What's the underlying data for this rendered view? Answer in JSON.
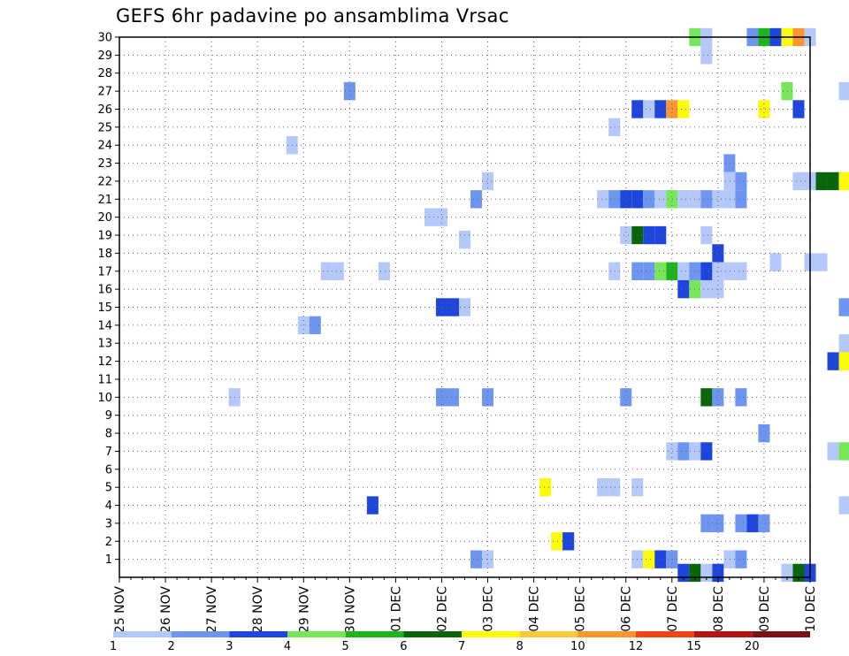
{
  "chart_data": {
    "type": "heatmap",
    "title": "GEFS 6hr padavine po ansamblima Vrsac",
    "xlabel": "",
    "ylabel": "",
    "x_tick_labels": [
      "25 NOV",
      "26 NOV",
      "27 NOV",
      "28 NOV",
      "29 NOV",
      "30 NOV",
      "01 DEC",
      "02 DEC",
      "03 DEC",
      "04 DEC",
      "05 DEC",
      "06 DEC",
      "07 DEC",
      "08 DEC",
      "09 DEC",
      "10 DEC"
    ],
    "x_range_days": [
      0,
      15
    ],
    "y_tick_labels": [
      "1",
      "2",
      "3",
      "4",
      "5",
      "6",
      "7",
      "8",
      "9",
      "10",
      "11",
      "12",
      "13",
      "14",
      "15",
      "16",
      "17",
      "18",
      "19",
      "20",
      "21",
      "22",
      "23",
      "24",
      "25",
      "26",
      "27",
      "28",
      "29",
      "30"
    ],
    "y_range": [
      0,
      30
    ],
    "grid": true,
    "time_step_hours": 6,
    "colorbar": {
      "labels": [
        "1",
        "2",
        "3",
        "4",
        "5",
        "6",
        "7",
        "8",
        "10",
        "12",
        "15",
        "20"
      ],
      "colors": [
        "#b4c8fa",
        "#6e96f0",
        "#1e46dc",
        "#78e65a",
        "#1eb41e",
        "#0a640a",
        "#fafa0a",
        "#fac83c",
        "#fa9632",
        "#f04614",
        "#b41414",
        "#781414"
      ]
    },
    "cells": [
      [
        12.5,
        30,
        "#78e65a"
      ],
      [
        12.75,
        30,
        "#b4c8fa"
      ],
      [
        13.75,
        30,
        "#6e96f0"
      ],
      [
        14.0,
        30,
        "#1eb41e"
      ],
      [
        14.25,
        30,
        "#1e46dc"
      ],
      [
        14.5,
        30,
        "#fafa0a"
      ],
      [
        14.75,
        30,
        "#fa9632"
      ],
      [
        15.0,
        30,
        "#b4c8fa"
      ],
      [
        12.75,
        29,
        "#b4c8fa"
      ],
      [
        5.0,
        27,
        "#6e96f0"
      ],
      [
        14.5,
        27,
        "#78e65a"
      ],
      [
        15.75,
        27,
        "#b4c8fa"
      ],
      [
        11.25,
        26,
        "#1e46dc"
      ],
      [
        11.5,
        26,
        "#b4c8fa"
      ],
      [
        11.75,
        26,
        "#1e46dc"
      ],
      [
        12.0,
        26,
        "#fa9632"
      ],
      [
        12.25,
        26,
        "#fafa0a"
      ],
      [
        14.0,
        26,
        "#fafa0a"
      ],
      [
        14.75,
        26,
        "#1e46dc"
      ],
      [
        10.75,
        25,
        "#b4c8fa"
      ],
      [
        3.75,
        24,
        "#b4c8fa"
      ],
      [
        13.25,
        23,
        "#6e96f0"
      ],
      [
        8.0,
        22,
        "#b4c8fa"
      ],
      [
        13.25,
        22,
        "#b4c8fa"
      ],
      [
        13.5,
        22,
        "#6e96f0"
      ],
      [
        14.75,
        22,
        "#b4c8fa"
      ],
      [
        15.0,
        22,
        "#b4c8fa"
      ],
      [
        15.25,
        22,
        "#0a640a"
      ],
      [
        15.5,
        22,
        "#0a640a"
      ],
      [
        15.75,
        22,
        "#fafa0a"
      ],
      [
        7.75,
        21,
        "#6e96f0"
      ],
      [
        10.5,
        21,
        "#b4c8fa"
      ],
      [
        10.75,
        21,
        "#6e96f0"
      ],
      [
        11.0,
        21,
        "#1e46dc"
      ],
      [
        11.25,
        21,
        "#1e46dc"
      ],
      [
        11.5,
        21,
        "#6e96f0"
      ],
      [
        11.75,
        21,
        "#b4c8fa"
      ],
      [
        12.0,
        21,
        "#78e65a"
      ],
      [
        12.25,
        21,
        "#b4c8fa"
      ],
      [
        12.5,
        21,
        "#b4c8fa"
      ],
      [
        12.75,
        21,
        "#6e96f0"
      ],
      [
        13.0,
        21,
        "#b4c8fa"
      ],
      [
        13.25,
        21,
        "#b4c8fa"
      ],
      [
        13.5,
        21,
        "#6e96f0"
      ],
      [
        6.75,
        20,
        "#b4c8fa"
      ],
      [
        7.0,
        20,
        "#b4c8fa"
      ],
      [
        11.0,
        19,
        "#b4c8fa"
      ],
      [
        11.25,
        19,
        "#0a640a"
      ],
      [
        11.5,
        19,
        "#1e46dc"
      ],
      [
        11.75,
        19,
        "#1e46dc"
      ],
      [
        12.75,
        19,
        "#b4c8fa"
      ],
      [
        7.5,
        18.75,
        "#b4c8fa"
      ],
      [
        13.0,
        18,
        "#1e46dc"
      ],
      [
        4.5,
        17,
        "#b4c8fa"
      ],
      [
        4.75,
        17,
        "#b4c8fa"
      ],
      [
        5.75,
        17,
        "#b4c8fa"
      ],
      [
        10.75,
        17,
        "#b4c8fa"
      ],
      [
        11.25,
        17,
        "#6e96f0"
      ],
      [
        11.5,
        17,
        "#6e96f0"
      ],
      [
        11.75,
        17,
        "#78e65a"
      ],
      [
        12.0,
        17,
        "#1eb41e"
      ],
      [
        12.25,
        17,
        "#b4c8fa"
      ],
      [
        12.5,
        17,
        "#6e96f0"
      ],
      [
        12.75,
        17,
        "#1e46dc"
      ],
      [
        13.0,
        17,
        "#b4c8fa"
      ],
      [
        13.25,
        17,
        "#b4c8fa"
      ],
      [
        13.5,
        17,
        "#b4c8fa"
      ],
      [
        14.25,
        17.5,
        "#b4c8fa"
      ],
      [
        15.0,
        17.5,
        "#b4c8fa"
      ],
      [
        15.25,
        17.5,
        "#b4c8fa"
      ],
      [
        7.0,
        15,
        "#1e46dc"
      ],
      [
        7.25,
        15,
        "#1e46dc"
      ],
      [
        7.5,
        15,
        "#b4c8fa"
      ],
      [
        12.25,
        16,
        "#1e46dc"
      ],
      [
        12.5,
        16,
        "#78e65a"
      ],
      [
        12.75,
        16,
        "#b4c8fa"
      ],
      [
        13.0,
        16,
        "#b4c8fa"
      ],
      [
        15.75,
        15,
        "#6e96f0"
      ],
      [
        4.0,
        14,
        "#b4c8fa"
      ],
      [
        4.25,
        14,
        "#6e96f0"
      ],
      [
        15.75,
        13,
        "#b4c8fa"
      ],
      [
        15.5,
        12,
        "#1e46dc"
      ],
      [
        15.75,
        12,
        "#fafa0a"
      ],
      [
        2.5,
        10,
        "#b4c8fa"
      ],
      [
        7.0,
        10,
        "#6e96f0"
      ],
      [
        7.25,
        10,
        "#6e96f0"
      ],
      [
        8.0,
        10,
        "#6e96f0"
      ],
      [
        11.0,
        10,
        "#6e96f0"
      ],
      [
        12.75,
        10,
        "#0a640a"
      ],
      [
        13.0,
        10,
        "#6e96f0"
      ],
      [
        13.5,
        10,
        "#6e96f0"
      ],
      [
        14.0,
        8,
        "#6e96f0"
      ],
      [
        12.0,
        7,
        "#b4c8fa"
      ],
      [
        12.25,
        7,
        "#6e96f0"
      ],
      [
        12.5,
        7,
        "#b4c8fa"
      ],
      [
        12.75,
        7,
        "#1e46dc"
      ],
      [
        15.5,
        7,
        "#b4c8fa"
      ],
      [
        15.75,
        7,
        "#78e65a"
      ],
      [
        9.25,
        5,
        "#fafa0a"
      ],
      [
        10.5,
        5,
        "#b4c8fa"
      ],
      [
        10.75,
        5,
        "#b4c8fa"
      ],
      [
        11.25,
        5,
        "#b4c8fa"
      ],
      [
        5.5,
        4,
        "#1e46dc"
      ],
      [
        15.75,
        4,
        "#b4c8fa"
      ],
      [
        12.75,
        3,
        "#6e96f0"
      ],
      [
        13.0,
        3,
        "#6e96f0"
      ],
      [
        13.5,
        3,
        "#6e96f0"
      ],
      [
        13.75,
        3,
        "#1e46dc"
      ],
      [
        14.0,
        3,
        "#6e96f0"
      ],
      [
        9.5,
        2,
        "#fafa0a"
      ],
      [
        9.75,
        2,
        "#1e46dc"
      ],
      [
        7.75,
        1,
        "#6e96f0"
      ],
      [
        8.0,
        1,
        "#b4c8fa"
      ],
      [
        11.25,
        1,
        "#b4c8fa"
      ],
      [
        11.5,
        1,
        "#fafa0a"
      ],
      [
        11.75,
        1,
        "#1e46dc"
      ],
      [
        12.0,
        1,
        "#6e96f0"
      ],
      [
        13.25,
        1,
        "#b4c8fa"
      ],
      [
        13.5,
        1,
        "#6e96f0"
      ],
      [
        12.25,
        0.25,
        "#1e46dc"
      ],
      [
        12.5,
        0.25,
        "#0a640a"
      ],
      [
        12.75,
        0.25,
        "#b4c8fa"
      ],
      [
        13.0,
        0.25,
        "#1e46dc"
      ],
      [
        14.5,
        0.25,
        "#b4c8fa"
      ],
      [
        14.75,
        0.25,
        "#0a640a"
      ],
      [
        15.0,
        0.25,
        "#1e46dc"
      ]
    ]
  }
}
